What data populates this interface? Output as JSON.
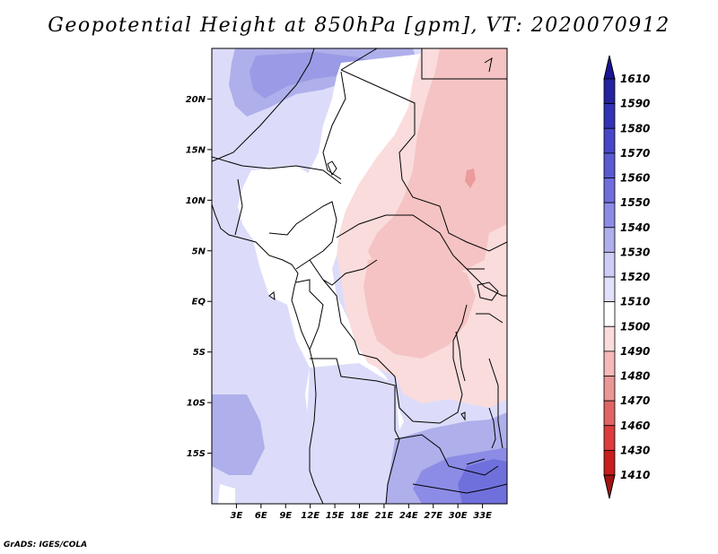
{
  "title": "Geopotential Height at 850hPa [gpm], VT: 2020070912",
  "footer": "GrADS: IGES/COLA",
  "map": {
    "lon_range": [
      0,
      36
    ],
    "lat_range": [
      -20,
      25
    ],
    "x_ticks": [
      {
        "value": 3,
        "label": "3E"
      },
      {
        "value": 6,
        "label": "6E"
      },
      {
        "value": 9,
        "label": "9E"
      },
      {
        "value": 12,
        "label": "12E"
      },
      {
        "value": 15,
        "label": "15E"
      },
      {
        "value": 18,
        "label": "18E"
      },
      {
        "value": 21,
        "label": "21E"
      },
      {
        "value": 24,
        "label": "24E"
      },
      {
        "value": 27,
        "label": "27E"
      },
      {
        "value": 30,
        "label": "30E"
      },
      {
        "value": 33,
        "label": "33E"
      }
    ],
    "y_ticks": [
      {
        "value": 20,
        "label": "20N"
      },
      {
        "value": 15,
        "label": "15N"
      },
      {
        "value": 10,
        "label": "10N"
      },
      {
        "value": 5,
        "label": "5N"
      },
      {
        "value": 0,
        "label": "EQ"
      },
      {
        "value": -5,
        "label": "5S"
      },
      {
        "value": -10,
        "label": "10S"
      },
      {
        "value": -15,
        "label": "15S"
      }
    ]
  },
  "colorbar": {
    "levels": [
      "1610",
      "1590",
      "1580",
      "1570",
      "1560",
      "1550",
      "1540",
      "1530",
      "1520",
      "1510",
      "1500",
      "1490",
      "1480",
      "1470",
      "1460",
      "1430",
      "1410"
    ],
    "colors": [
      "#1a1496",
      "#23239e",
      "#3232b4",
      "#4646c8",
      "#5a5ad2",
      "#6e6edc",
      "#8c8ce6",
      "#afafeb",
      "#cdcdf5",
      "#e1e1fa",
      "#ffffff",
      "#fadcdc",
      "#f5b9b9",
      "#eb9696",
      "#e16464",
      "#dc3c3c",
      "#c81e1e",
      "#a01414"
    ]
  },
  "colors": {
    "ocean": "#dcdcfa",
    "light_blue": "#dcdcfa",
    "mid_blue": "#afafeb",
    "dark_blue": "#8c8ce6",
    "white": "#ffffff",
    "light_pink": "#fadcdc",
    "pink": "#f5c3c3",
    "dark_pink": "#eb9b9b",
    "border": "#000000"
  }
}
